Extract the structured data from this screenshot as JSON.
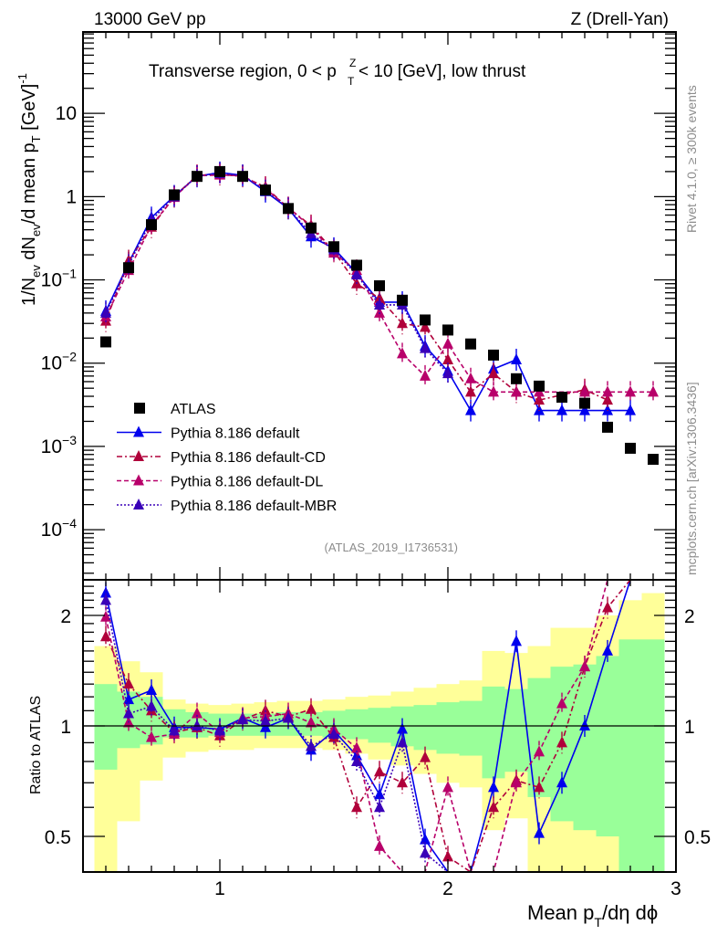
{
  "chart_data": [
    {
      "type": "scatter",
      "panel": "main",
      "title": "Transverse region, 0 < p_T^Z < 10 [GeV], low thrust",
      "top_left_label": "13000 GeV pp",
      "top_right_label": "Z (Drell-Yan)",
      "analysis_label": "(ATLAS_2019_I1736531)",
      "side_label_top": "Rivet 4.1.0, ≥ 300k events",
      "side_label_bottom": "mcplots.cern.ch [arXiv:1306.3436]",
      "ylabel": "1/N_ev dN_ev/d mean p_T [GeV]^-1",
      "xlabel": "Mean p_T/dη dϕ",
      "yscale": "log",
      "xlim": [
        0.4,
        3.0
      ],
      "ylim": [
        2.5e-05,
        95
      ],
      "x_ticks": [
        "1",
        "2",
        "3"
      ],
      "y_ticks": [
        "10",
        "1",
        "10^-1",
        "10^-2",
        "10^-3",
        "10^-4"
      ],
      "legend_position": "bottom-left",
      "legend": [
        {
          "name": "ATLAS",
          "marker": "square",
          "color": "#000000",
          "line": "none"
        },
        {
          "name": "Pythia 8.186 default",
          "marker": "triangle",
          "color": "#0000ee",
          "line": "solid"
        },
        {
          "name": "Pythia 8.186 default-CD",
          "marker": "triangle",
          "color": "#b0003a",
          "line": "dashdot"
        },
        {
          "name": "Pythia 8.186 default-DL",
          "marker": "triangle",
          "color": "#b8006a",
          "line": "dashed"
        },
        {
          "name": "Pythia 8.186 default-MBR",
          "marker": "triangle",
          "color": "#3a00b8",
          "line": "dotted"
        }
      ],
      "x": [
        0.5,
        0.6,
        0.7,
        0.8,
        0.9,
        1.0,
        1.1,
        1.2,
        1.3,
        1.4,
        1.5,
        1.6,
        1.7,
        1.8,
        1.9,
        2.0,
        2.1,
        2.2,
        2.3,
        2.4,
        2.5,
        2.6,
        2.7,
        2.8,
        2.9
      ],
      "series": [
        {
          "name": "ATLAS",
          "values": [
            0.018,
            0.14,
            0.46,
            1.05,
            1.75,
            2.0,
            1.75,
            1.2,
            0.72,
            0.42,
            0.25,
            0.15,
            0.085,
            0.057,
            0.033,
            0.025,
            0.017,
            0.0125,
            0.0065,
            0.0053,
            0.0039,
            0.0033,
            0.0017,
            0.00095,
            0.0007
          ]
        },
        {
          "name": "Pythia 8.186 default",
          "values": [
            0.042,
            0.16,
            0.56,
            1.02,
            1.75,
            1.95,
            1.8,
            1.15,
            0.72,
            0.33,
            0.24,
            0.12,
            0.054,
            0.054,
            0.016,
            0.008,
            0.0027,
            0.0085,
            0.011,
            0.0027,
            0.0027,
            0.0027,
            0.0027,
            0.0027,
            null
          ]
        },
        {
          "name": "Pythia 8.186 default-CD",
          "values": [
            0.032,
            0.17,
            0.43,
            1.0,
            1.8,
            1.85,
            1.75,
            1.3,
            0.73,
            0.45,
            0.22,
            0.09,
            0.06,
            0.03,
            0.027,
            0.011,
            0.0045,
            0.0075,
            0.0045,
            0.0036,
            null,
            0.0048,
            0.0036,
            null,
            null
          ]
        },
        {
          "name": "Pythia 8.186 default-DL",
          "values": [
            0.036,
            0.13,
            0.45,
            0.98,
            1.78,
            1.82,
            1.78,
            1.25,
            0.74,
            0.43,
            0.21,
            0.13,
            0.04,
            0.013,
            0.007,
            0.017,
            0.0065,
            0.0045,
            0.0045,
            0.0045,
            null,
            0.0045,
            0.0045,
            0.0045,
            0.0045
          ]
        },
        {
          "name": "Pythia 8.186 default-MBR",
          "values": [
            0.04,
            0.15,
            0.52,
            1.0,
            1.76,
            1.9,
            1.78,
            1.18,
            0.72,
            0.36,
            0.23,
            0.115,
            0.05,
            0.05,
            0.015,
            0.0075,
            null,
            null,
            null,
            null,
            null,
            null,
            null,
            null,
            null
          ]
        }
      ]
    },
    {
      "type": "line",
      "panel": "ratio",
      "ylabel": "Ratio to ATLAS",
      "xlabel": "Mean p_T/dη dϕ",
      "yscale": "log",
      "xlim": [
        0.4,
        3.0
      ],
      "ylim": [
        0.4,
        2.5
      ],
      "x_ticks": [
        "1",
        "2",
        "3"
      ],
      "y_ticks": [
        "0.5",
        "1",
        "2"
      ],
      "x": [
        0.5,
        0.6,
        0.7,
        0.8,
        0.9,
        1.0,
        1.1,
        1.2,
        1.3,
        1.4,
        1.5,
        1.6,
        1.7,
        1.8,
        1.9,
        2.0,
        2.1,
        2.2,
        2.3,
        2.4,
        2.5,
        2.6,
        2.7,
        2.8,
        2.9
      ],
      "bands": {
        "green_lo": [
          0.76,
          0.87,
          0.89,
          0.93,
          0.93,
          0.94,
          0.94,
          0.94,
          0.94,
          0.94,
          0.93,
          0.92,
          0.9,
          0.88,
          0.86,
          0.84,
          0.83,
          0.72,
          0.75,
          0.64,
          0.55,
          0.52,
          0.5,
          0.4,
          0.4
        ],
        "green_hi": [
          1.3,
          1.24,
          1.2,
          1.11,
          1.09,
          1.08,
          1.08,
          1.08,
          1.09,
          1.09,
          1.1,
          1.11,
          1.12,
          1.13,
          1.14,
          1.16,
          1.17,
          1.28,
          1.26,
          1.35,
          1.45,
          1.47,
          1.55,
          1.72,
          1.72
        ],
        "yellow_lo": [
          0.4,
          0.55,
          0.71,
          0.82,
          0.85,
          0.86,
          0.86,
          0.87,
          0.87,
          0.87,
          0.86,
          0.84,
          0.81,
          0.78,
          0.74,
          0.7,
          0.68,
          0.52,
          0.56,
          0.4,
          0.4,
          0.4,
          0.4,
          0.4,
          0.4
        ],
        "yellow_hi": [
          1.65,
          1.5,
          1.4,
          1.18,
          1.15,
          1.14,
          1.15,
          1.16,
          1.17,
          1.17,
          1.18,
          1.2,
          1.21,
          1.24,
          1.27,
          1.3,
          1.33,
          1.6,
          1.58,
          1.65,
          1.85,
          1.85,
          2.0,
          2.2,
          2.3
        ]
      },
      "series": [
        {
          "name": "Pythia 8.186 default",
          "values": [
            2.3,
            1.18,
            1.25,
            0.99,
            0.99,
            0.98,
            1.05,
            0.99,
            1.05,
            0.86,
            0.97,
            0.83,
            0.65,
            0.98,
            0.49,
            0.33,
            0.16,
            0.68,
            1.7,
            0.51,
            0.7,
            1.0,
            1.6,
            2.8,
            null
          ]
        },
        {
          "name": "Pythia 8.186 default-CD",
          "values": [
            1.75,
            1.3,
            1.1,
            0.96,
            0.99,
            0.94,
            1.04,
            1.1,
            1.06,
            1.11,
            0.93,
            0.6,
            0.75,
            0.7,
            0.82,
            0.44,
            0.27,
            0.6,
            0.71,
            0.68,
            0.9,
            1.45,
            2.1,
            2.8,
            null
          ]
        },
        {
          "name": "Pythia 8.186 default-DL",
          "values": [
            1.98,
            1.02,
            0.93,
            0.95,
            1.08,
            0.96,
            1.05,
            1.06,
            1.08,
            1.02,
            0.98,
            0.87,
            0.47,
            0.22,
            0.21,
            0.68,
            0.38,
            0.36,
            0.7,
            0.85,
            1.15,
            1.45,
            2.6,
            4.7,
            6.4
          ]
        },
        {
          "name": "Pythia 8.186 default-MBR",
          "values": [
            2.2,
            1.08,
            1.13,
            0.97,
            1.0,
            0.97,
            1.04,
            1.03,
            1.05,
            0.88,
            0.95,
            0.8,
            0.6,
            0.9,
            0.45,
            0.3,
            null,
            null,
            null,
            null,
            null,
            null,
            null,
            null,
            null
          ]
        }
      ]
    }
  ]
}
